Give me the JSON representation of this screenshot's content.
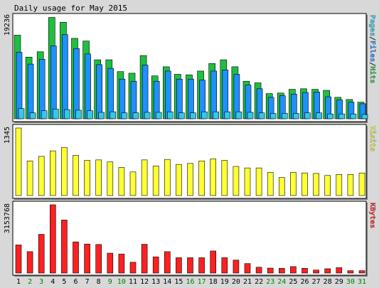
{
  "title": "Daily usage for May 2015",
  "colors": {
    "background": "#d8d8d8",
    "panel": "#ffffff",
    "hits": "#1fbf3f",
    "files": "#1e90ff",
    "pages": "#35c8e8",
    "visits": "#ffff33",
    "kbytes": "#ff2020",
    "weekday_label": "#000000",
    "weekend_label": "#008000"
  },
  "chart_data": [
    {
      "type": "bar",
      "panel": "top",
      "y_max_label": "19236",
      "ylim": [
        0,
        19236
      ],
      "legend_labels": [
        "Pages",
        "/",
        "Files",
        "/",
        "Hits"
      ],
      "categories": [
        "1",
        "2",
        "3",
        "4",
        "5",
        "6",
        "7",
        "8",
        "9",
        "10",
        "11",
        "12",
        "13",
        "14",
        "15",
        "16",
        "17",
        "18",
        "19",
        "20",
        "21",
        "22",
        "23",
        "24",
        "25",
        "26",
        "27",
        "28",
        "29",
        "30",
        "31"
      ],
      "series": [
        {
          "name": "Hits",
          "values": [
            15600,
            11500,
            12500,
            18900,
            18000,
            15000,
            14500,
            11000,
            11000,
            8800,
            8500,
            11800,
            8000,
            9700,
            8300,
            8200,
            8900,
            10300,
            11000,
            9700,
            7000,
            6700,
            4700,
            4800,
            5500,
            5600,
            5500,
            5300,
            4000,
            3600,
            3100
          ]
        },
        {
          "name": "Files",
          "values": [
            12400,
            10200,
            11100,
            13600,
            15700,
            13100,
            12100,
            10100,
            9400,
            7400,
            7000,
            10000,
            7000,
            8900,
            7400,
            7400,
            7200,
            8900,
            9100,
            8300,
            6300,
            5600,
            4000,
            4300,
            4600,
            4900,
            5000,
            4100,
            3500,
            3100,
            2800
          ]
        },
        {
          "name": "Pages",
          "values": [
            1900,
            1100,
            1500,
            1800,
            1700,
            1600,
            1500,
            1200,
            1300,
            1100,
            1100,
            1200,
            1200,
            1300,
            1100,
            1100,
            1300,
            1300,
            1300,
            1300,
            1200,
            1100,
            1000,
            1000,
            1000,
            1100,
            1100,
            900,
            900,
            900,
            800
          ]
        }
      ]
    },
    {
      "type": "bar",
      "panel": "middle",
      "y_max_label": "1345",
      "ylim": [
        0,
        1345
      ],
      "legend_labels": [
        "Visits"
      ],
      "categories": [
        "1",
        "2",
        "3",
        "4",
        "5",
        "6",
        "7",
        "8",
        "9",
        "10",
        "11",
        "12",
        "13",
        "14",
        "15",
        "16",
        "17",
        "18",
        "19",
        "20",
        "21",
        "22",
        "23",
        "24",
        "25",
        "26",
        "27",
        "28",
        "29",
        "30",
        "31"
      ],
      "series": [
        {
          "name": "Visits",
          "values": [
            1345,
            690,
            780,
            890,
            960,
            800,
            700,
            710,
            670,
            560,
            470,
            710,
            590,
            720,
            620,
            640,
            690,
            730,
            700,
            580,
            550,
            550,
            460,
            360,
            460,
            450,
            440,
            400,
            420,
            420,
            450
          ]
        }
      ]
    },
    {
      "type": "bar",
      "panel": "bottom",
      "y_max_label": "3153768",
      "ylim": [
        0,
        3153768
      ],
      "legend_labels": [
        "KBytes"
      ],
      "categories": [
        "1",
        "2",
        "3",
        "4",
        "5",
        "6",
        "7",
        "8",
        "9",
        "10",
        "11",
        "12",
        "13",
        "14",
        "15",
        "16",
        "17",
        "18",
        "19",
        "20",
        "21",
        "22",
        "23",
        "24",
        "25",
        "26",
        "27",
        "28",
        "29",
        "30",
        "31"
      ],
      "series": [
        {
          "name": "KBytes",
          "values": [
            1300000,
            990000,
            1790000,
            3153768,
            2450000,
            1440000,
            1340000,
            1320000,
            920000,
            880000,
            500000,
            1330000,
            750000,
            990000,
            710000,
            710000,
            710000,
            1020000,
            710000,
            600000,
            440000,
            270000,
            230000,
            220000,
            300000,
            220000,
            140000,
            200000,
            250000,
            110000,
            110000
          ]
        }
      ]
    }
  ],
  "weekend_days": [
    "2",
    "3",
    "9",
    "10",
    "16",
    "17",
    "23",
    "24",
    "30",
    "31"
  ]
}
